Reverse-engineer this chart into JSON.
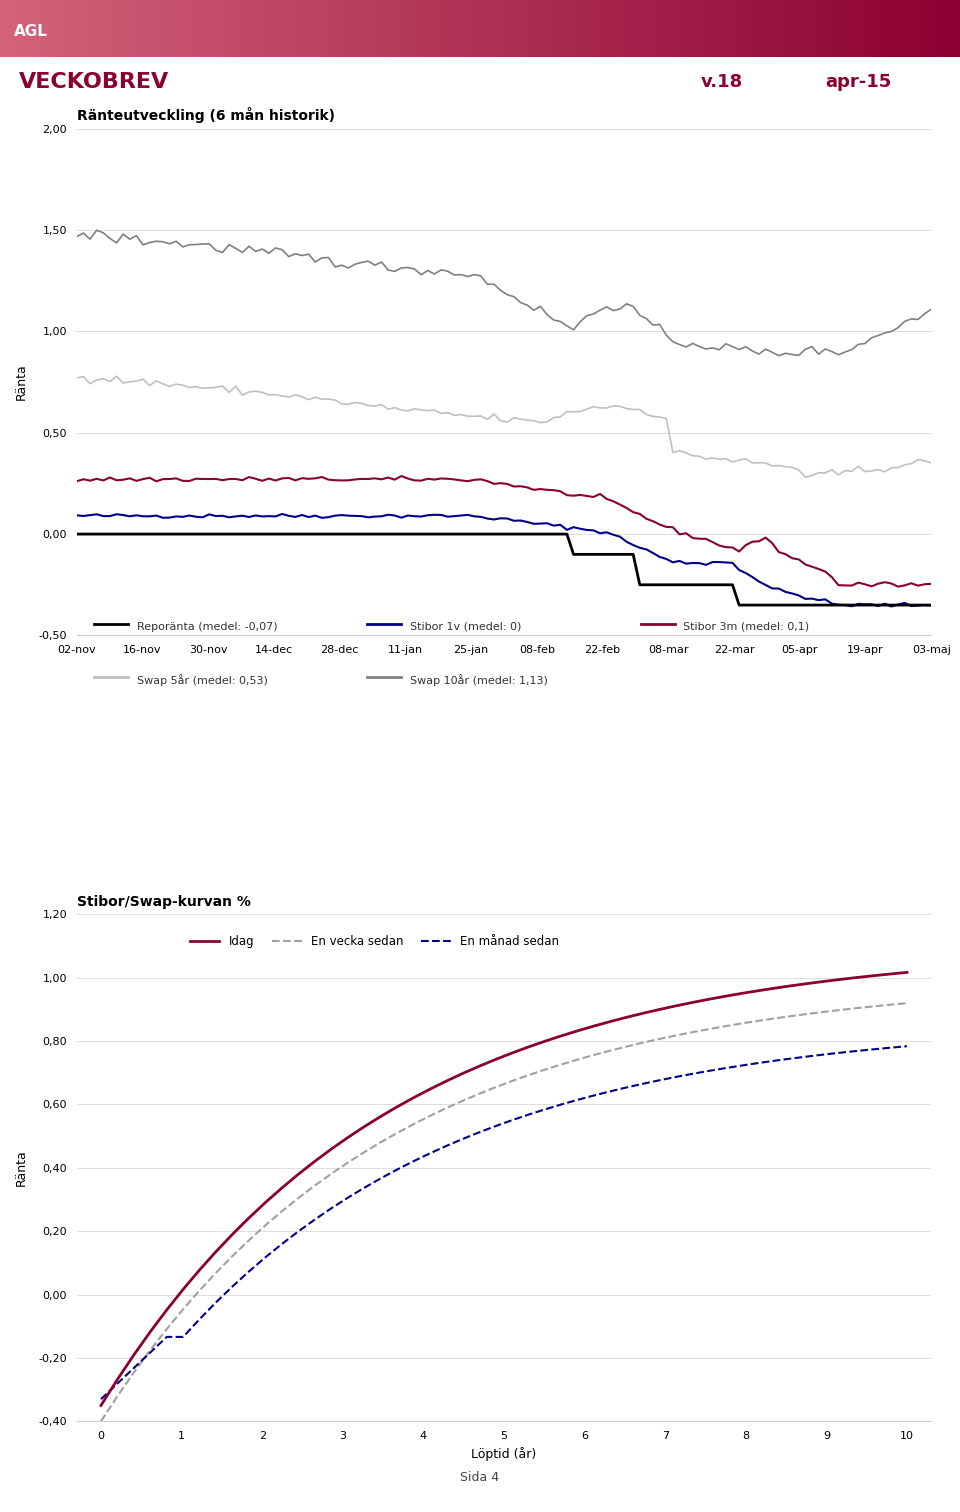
{
  "title_main": "VECKOBREV",
  "title_version": "v.18",
  "title_date": "apr-15",
  "header_color": "#8B0032",
  "header_gradient_left": "#c87090",
  "header_text": "AGL",
  "chart1_title": "Ränteutveckling (6 mån historik)",
  "chart1_ylabel": "Ränta",
  "chart1_ylim": [
    -0.5,
    2.0
  ],
  "chart1_yticks": [
    -0.5,
    0.0,
    0.5,
    1.0,
    1.5,
    2.0
  ],
  "chart1_xticks": [
    "02-nov",
    "16-nov",
    "30-nov",
    "14-dec",
    "28-dec",
    "11-jan",
    "25-jan",
    "08-feb",
    "22-feb",
    "08-mar",
    "22-mar",
    "05-apr",
    "19-apr",
    "03-maj"
  ],
  "chart2_title": "Stibor/Swap-kurvan %",
  "chart2_ylabel": "Ränta",
  "chart2_xlabel": "Löptid (år)",
  "chart2_ylim": [
    -0.4,
    1.2
  ],
  "chart2_yticks": [
    -0.4,
    -0.2,
    0.0,
    0.2,
    0.4,
    0.6,
    0.8,
    1.0,
    1.2
  ],
  "color_repo": "#000000",
  "color_stibor1v": "#00008B",
  "color_stibor3m": "#8B0032",
  "color_swap5": "#c0c0c0",
  "color_swap10": "#808080",
  "color_idag": "#8B0032",
  "color_vecka": "#a0a0a0",
  "color_manad": "#00008B",
  "legend1": [
    {
      "label": "Reporänta (medel: -0,07)",
      "color": "#000000"
    },
    {
      "label": "Stibor 1v (medel: 0)",
      "color": "#00008B"
    },
    {
      "label": "Stibor 3m (medel: 0,1)",
      "color": "#8B0032"
    },
    {
      "label": "Swap 5år (medel: 0,53)",
      "color": "#c0c0c0"
    },
    {
      "label": "Swap 10år (medel: 1,13)",
      "color": "#808080"
    }
  ],
  "legend2": [
    {
      "label": "Idag",
      "color": "#8B0032",
      "ls": "solid"
    },
    {
      "label": "En vecka sedan",
      "color": "#a0a0a0",
      "ls": "dashed"
    },
    {
      "label": "En månad sedan",
      "color": "#00008B",
      "ls": "dashed"
    }
  ],
  "footer_text": "Sida 4"
}
